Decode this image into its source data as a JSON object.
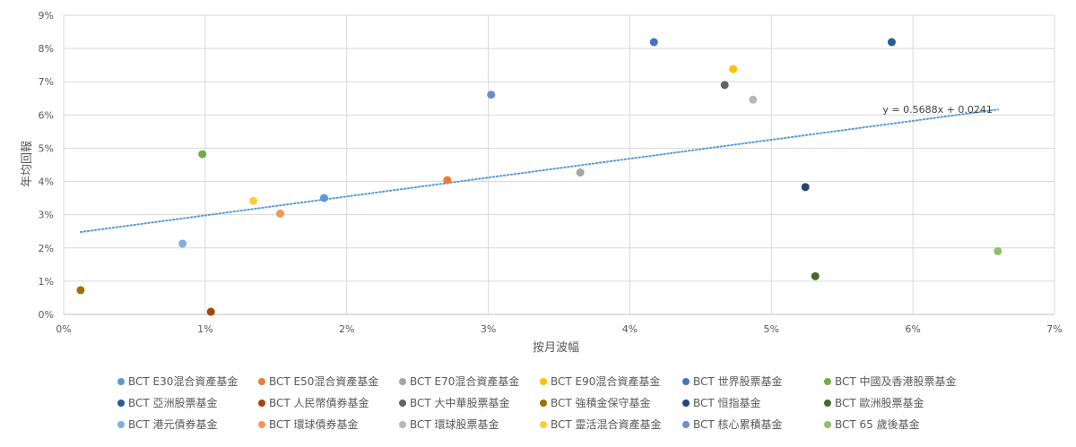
{
  "chart_data": {
    "type": "scatter",
    "xlabel": "按月波幅",
    "ylabel": "年均回報",
    "xlim": [
      0,
      0.07
    ],
    "ylim": [
      0,
      0.09
    ],
    "x_ticks": [
      "0%",
      "1%",
      "2%",
      "3%",
      "4%",
      "5%",
      "6%",
      "7%"
    ],
    "y_ticks": [
      "0%",
      "1%",
      "2%",
      "3%",
      "4%",
      "5%",
      "6%",
      "7%",
      "8%",
      "9%"
    ],
    "grid": true,
    "legend_position": "bottom",
    "series": [
      {
        "name": "BCT E30混合資產基金",
        "color": "#5b9bd5",
        "x": 0.0184,
        "y": 0.035
      },
      {
        "name": "BCT E50混合資產基金",
        "color": "#ed7d31",
        "x": 0.0271,
        "y": 0.0404
      },
      {
        "name": "BCT E70混合資產基金",
        "color": "#a5a5a5",
        "x": 0.0365,
        "y": 0.0427
      },
      {
        "name": "BCT E90混合資產基金",
        "color": "#ffc000",
        "x": 0.0473,
        "y": 0.0738
      },
      {
        "name": "BCT 世界股票基金",
        "color": "#4472c4",
        "x": 0.0417,
        "y": 0.0819
      },
      {
        "name": "BCT 中國及香港股票基金",
        "color": "#70ad47",
        "x": 0.0098,
        "y": 0.0482
      },
      {
        "name": "BCT 亞洲股票基金",
        "color": "#255e91",
        "x": 0.0585,
        "y": 0.0819
      },
      {
        "name": "BCT 人民幣債券基金",
        "color": "#9e480e",
        "x": 0.0104,
        "y": 0.0008
      },
      {
        "name": "BCT 大中華股票基金",
        "color": "#636363",
        "x": 0.0467,
        "y": 0.069
      },
      {
        "name": "BCT 強積金保守基金",
        "color": "#997300",
        "x": 0.0012,
        "y": 0.0073
      },
      {
        "name": "BCT 恒指基金",
        "color": "#264478",
        "x": 0.0524,
        "y": 0.0383
      },
      {
        "name": "BCT 歐洲股票基金",
        "color": "#43682b",
        "x": 0.0531,
        "y": 0.0115
      },
      {
        "name": "BCT 港元債券基金",
        "color": "#7cafdd",
        "x": 0.0084,
        "y": 0.0213
      },
      {
        "name": "BCT 環球債券基金",
        "color": "#f1975a",
        "x": 0.0153,
        "y": 0.0303
      },
      {
        "name": "BCT 環球股票基金",
        "color": "#b7b7b7",
        "x": 0.0487,
        "y": 0.0646
      },
      {
        "name": "BCT 靈活混合資產基金",
        "color": "#ffcd33",
        "x": 0.0134,
        "y": 0.0342
      },
      {
        "name": "BCT 核心累積基金",
        "color": "#698ed0",
        "x": 0.0302,
        "y": 0.0661
      },
      {
        "name": "BCT 65 歲後基金",
        "color": "#8cc168",
        "x": 0.066,
        "y": 0.019
      }
    ],
    "trendline": {
      "type": "linear",
      "slope": 0.5688,
      "intercept": 0.0241,
      "x_range": [
        0.0012,
        0.066
      ],
      "color": "#5b9bd5",
      "equation": "y = 0.5688x + 0.0241"
    }
  }
}
